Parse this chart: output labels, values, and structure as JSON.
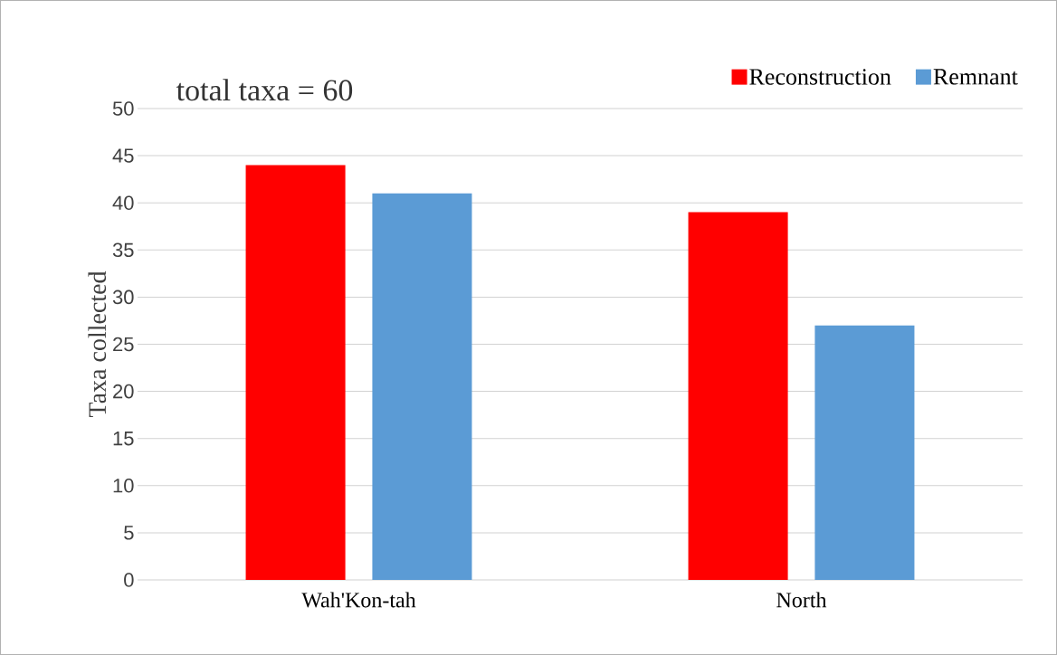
{
  "chart_data": {
    "type": "bar",
    "annotations": [
      "total taxa = 60"
    ],
    "ylabel": "Taxa collected",
    "categories": [
      "Wah'Kon-tah",
      "North"
    ],
    "series": [
      {
        "name": "Reconstruction",
        "color": "#ff0000",
        "values": [
          44,
          39
        ]
      },
      {
        "name": "Remnant",
        "color": "#5b9bd5",
        "values": [
          41,
          27
        ]
      }
    ],
    "ylim": [
      0,
      50
    ],
    "yticks": [
      0,
      5,
      10,
      15,
      20,
      25,
      30,
      35,
      40,
      45,
      50
    ],
    "grid": "y",
    "legend": "top right"
  }
}
